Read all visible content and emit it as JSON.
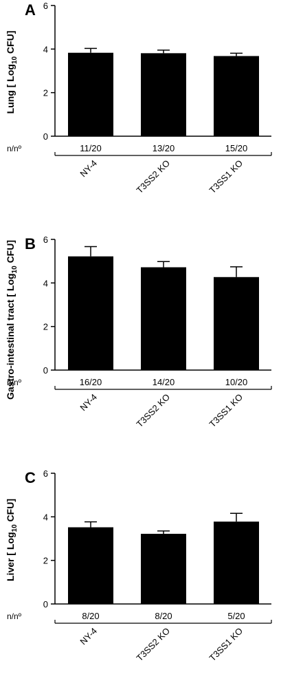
{
  "chart_data": [
    {
      "type": "bar",
      "panel": "A",
      "ylabel_pre": "Lung [ Log",
      "ylabel_sub": "10",
      "ylabel_post": " CFU]",
      "categories": [
        "NY-4",
        "T3SS2 KO",
        "T3SS1 KO"
      ],
      "values": [
        3.83,
        3.81,
        3.68
      ],
      "errors": [
        0.2,
        0.14,
        0.13
      ],
      "ylim": [
        0,
        6
      ],
      "yticks": [
        "0",
        "2",
        "4",
        "6"
      ],
      "counts_label": "n/nº",
      "counts": [
        "11/20",
        "13/20",
        "15/20"
      ],
      "grid": false
    },
    {
      "type": "bar",
      "panel": "B",
      "ylabel_pre": "Gastro-intestinal tract [ Log",
      "ylabel_sub": "10",
      "ylabel_post": " CFU]",
      "categories": [
        "NY-4",
        "T3SS2 KO",
        "T3SS1 KO"
      ],
      "values": [
        5.22,
        4.72,
        4.27
      ],
      "errors": [
        0.45,
        0.26,
        0.47
      ],
      "ylim": [
        0,
        6
      ],
      "yticks": [
        "0",
        "2",
        "4",
        "6"
      ],
      "counts_label": "n/nº",
      "counts": [
        "16/20",
        "14/20",
        "10/20"
      ],
      "grid": false
    },
    {
      "type": "bar",
      "panel": "C",
      "ylabel_pre": "Liver [ Log",
      "ylabel_sub": "10",
      "ylabel_post": " CFU]",
      "categories": [
        "NY-4",
        "T3SS2 KO",
        "T3SS1 KO"
      ],
      "values": [
        3.52,
        3.22,
        3.78
      ],
      "errors": [
        0.25,
        0.13,
        0.38
      ],
      "ylim": [
        0,
        6
      ],
      "yticks": [
        "0",
        "2",
        "4",
        "6"
      ],
      "counts_label": "n/nº",
      "counts": [
        "8/20",
        "8/20",
        "5/20"
      ],
      "grid": false
    }
  ]
}
